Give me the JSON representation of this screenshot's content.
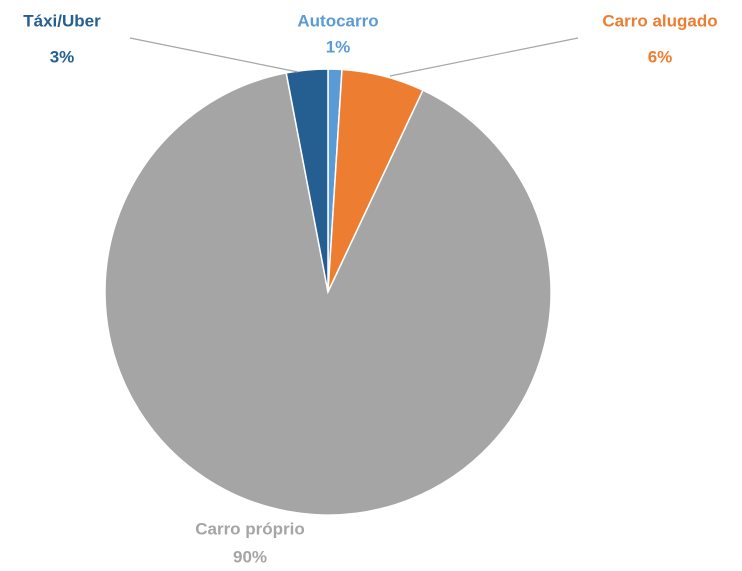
{
  "chart_data": {
    "type": "pie",
    "categories": [
      "Autocarro",
      "Carro alugado",
      "Carro próprio",
      "Táxi/Uber"
    ],
    "values": [
      1,
      6,
      90,
      3
    ],
    "value_labels": [
      "1%",
      "6%",
      "90%",
      "3%"
    ],
    "colors": [
      "#5b9bd5",
      "#ed7d31",
      "#a5a5a5",
      "#255e91"
    ]
  }
}
